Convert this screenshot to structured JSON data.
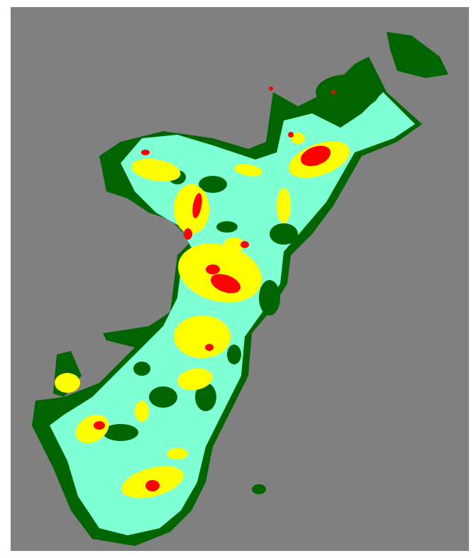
{
  "map": {
    "type": "classified-raster",
    "colors": {
      "background": "#808080",
      "class_1": "#006400",
      "class_2": "#7fffd4",
      "class_3": "#ffff00",
      "class_4": "#ff0000"
    }
  }
}
